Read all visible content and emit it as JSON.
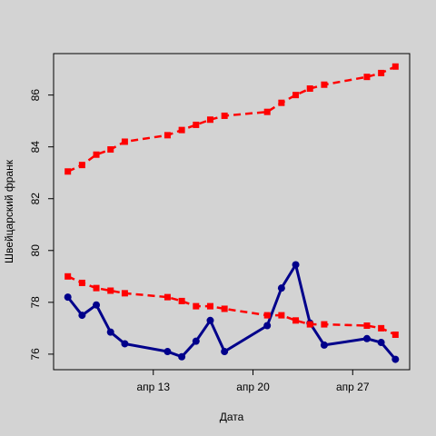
{
  "chart_data": {
    "type": "line",
    "title": "",
    "xlabel": "Дата",
    "ylabel": "Швейцарский франк",
    "x_ticks": [
      {
        "date": "2024-04-13",
        "label": "апр 13"
      },
      {
        "date": "2024-04-20",
        "label": "апр 20"
      },
      {
        "date": "2024-04-27",
        "label": "апр 27"
      }
    ],
    "y_ticks": [
      76,
      78,
      80,
      82,
      84,
      86
    ],
    "xlim": [
      "2024-04-06",
      "2024-05-01"
    ],
    "ylim": [
      75.4,
      87.6
    ],
    "grid": false,
    "legend": "none",
    "background": "#d3d3d3",
    "series": [
      {
        "style": "solid",
        "color": "#00008b",
        "points": [
          {
            "x": "2024-04-07",
            "y": 78.2
          },
          {
            "x": "2024-04-08",
            "y": 77.5
          },
          {
            "x": "2024-04-09",
            "y": 77.9
          },
          {
            "x": "2024-04-10",
            "y": 76.85
          },
          {
            "x": "2024-04-11",
            "y": 76.4
          },
          {
            "x": "2024-04-14",
            "y": 76.1
          },
          {
            "x": "2024-04-15",
            "y": 75.9
          },
          {
            "x": "2024-04-16",
            "y": 76.5
          },
          {
            "x": "2024-04-17",
            "y": 77.3
          },
          {
            "x": "2024-04-18",
            "y": 76.1
          },
          {
            "x": "2024-04-21",
            "y": 77.1
          },
          {
            "x": "2024-04-22",
            "y": 78.55
          },
          {
            "x": "2024-04-23",
            "y": 79.45
          },
          {
            "x": "2024-04-24",
            "y": 77.2
          },
          {
            "x": "2024-04-25",
            "y": 76.35
          },
          {
            "x": "2024-04-28",
            "y": 76.6
          },
          {
            "x": "2024-04-29",
            "y": 76.45
          },
          {
            "x": "2024-04-30",
            "y": 75.8
          }
        ]
      },
      {
        "style": "dashed",
        "color": "#ff0000",
        "points": [
          {
            "x": "2024-04-07",
            "y": 79.0
          },
          {
            "x": "2024-04-08",
            "y": 78.75
          },
          {
            "x": "2024-04-09",
            "y": 78.55
          },
          {
            "x": "2024-04-10",
            "y": 78.45
          },
          {
            "x": "2024-04-11",
            "y": 78.35
          },
          {
            "x": "2024-04-14",
            "y": 78.2
          },
          {
            "x": "2024-04-15",
            "y": 78.05
          },
          {
            "x": "2024-04-16",
            "y": 77.85
          },
          {
            "x": "2024-04-17",
            "y": 77.85
          },
          {
            "x": "2024-04-18",
            "y": 77.75
          },
          {
            "x": "2024-04-21",
            "y": 77.5
          },
          {
            "x": "2024-04-22",
            "y": 77.5
          },
          {
            "x": "2024-04-23",
            "y": 77.3
          },
          {
            "x": "2024-04-24",
            "y": 77.15
          },
          {
            "x": "2024-04-25",
            "y": 77.15
          },
          {
            "x": "2024-04-28",
            "y": 77.1
          },
          {
            "x": "2024-04-29",
            "y": 77.0
          },
          {
            "x": "2024-04-30",
            "y": 76.75
          }
        ]
      },
      {
        "style": "dashed",
        "color": "#ff0000",
        "points": [
          {
            "x": "2024-04-07",
            "y": 83.05
          },
          {
            "x": "2024-04-08",
            "y": 83.3
          },
          {
            "x": "2024-04-09",
            "y": 83.7
          },
          {
            "x": "2024-04-10",
            "y": 83.9
          },
          {
            "x": "2024-04-11",
            "y": 84.2
          },
          {
            "x": "2024-04-14",
            "y": 84.45
          },
          {
            "x": "2024-04-15",
            "y": 84.65
          },
          {
            "x": "2024-04-16",
            "y": 84.85
          },
          {
            "x": "2024-04-17",
            "y": 85.05
          },
          {
            "x": "2024-04-18",
            "y": 85.2
          },
          {
            "x": "2024-04-21",
            "y": 85.35
          },
          {
            "x": "2024-04-22",
            "y": 85.7
          },
          {
            "x": "2024-04-23",
            "y": 86.0
          },
          {
            "x": "2024-04-24",
            "y": 86.25
          },
          {
            "x": "2024-04-25",
            "y": 86.4
          },
          {
            "x": "2024-04-28",
            "y": 86.7
          },
          {
            "x": "2024-04-29",
            "y": 86.85
          },
          {
            "x": "2024-04-30",
            "y": 87.1
          }
        ]
      }
    ]
  }
}
